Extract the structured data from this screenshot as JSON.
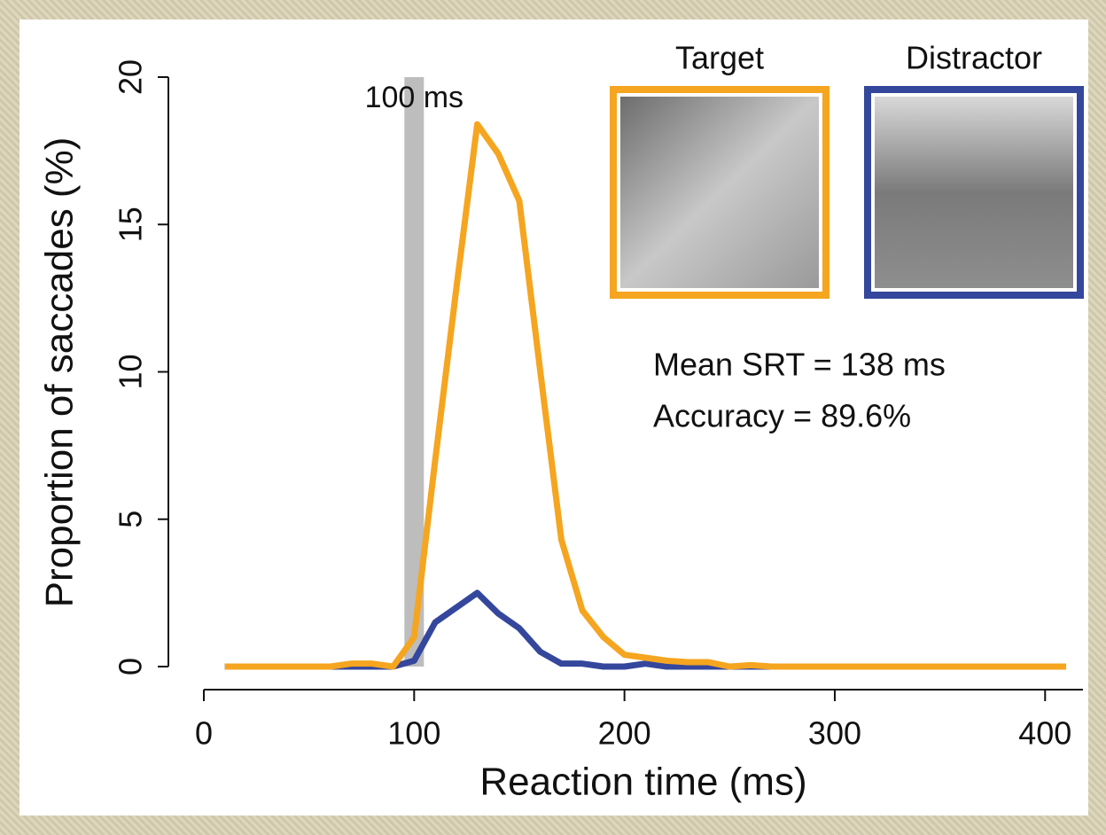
{
  "chart_data": {
    "type": "line",
    "xlabel": "Reaction time (ms)",
    "ylabel": "Proportion of saccades (%)",
    "x": [
      10,
      20,
      30,
      40,
      50,
      60,
      70,
      80,
      90,
      100,
      110,
      120,
      130,
      140,
      150,
      160,
      170,
      180,
      190,
      200,
      210,
      220,
      230,
      240,
      250,
      260,
      270,
      280,
      290,
      300,
      310,
      320,
      330,
      340,
      350,
      360,
      370,
      380,
      390,
      400,
      410
    ],
    "series": [
      {
        "name": "Distractor",
        "color": "#34479c",
        "values": [
          0,
          0,
          0,
          0,
          0,
          0,
          0,
          0,
          0,
          0.2,
          1.5,
          2.0,
          2.5,
          1.8,
          1.3,
          0.5,
          0.1,
          0.1,
          0,
          0,
          0.1,
          0,
          0,
          0,
          0,
          0,
          0,
          0,
          0,
          0,
          0,
          0,
          0,
          0,
          0,
          0,
          0,
          0,
          0,
          0,
          0
        ]
      },
      {
        "name": "Target",
        "color": "#f5a51f",
        "values": [
          0,
          0,
          0,
          0,
          0,
          0,
          0.1,
          0.1,
          0,
          1.0,
          7.0,
          12.8,
          18.4,
          17.4,
          15.8,
          10.0,
          4.3,
          1.9,
          1.0,
          0.4,
          0.3,
          0.2,
          0.15,
          0.15,
          0,
          0.05,
          0,
          0,
          0,
          0,
          0,
          0,
          0,
          0,
          0,
          0,
          0,
          0,
          0,
          0,
          0
        ]
      }
    ],
    "xlim": [
      0,
      418
    ],
    "ylim": [
      0,
      20
    ],
    "xticks": [
      0,
      100,
      200,
      300,
      400
    ],
    "yticks": [
      0,
      5,
      10,
      15,
      20
    ],
    "vline": {
      "x": 100,
      "label": "100 ms"
    },
    "annotations": [
      "Mean SRT = 138 ms",
      "Accuracy = 89.6%"
    ]
  }
}
